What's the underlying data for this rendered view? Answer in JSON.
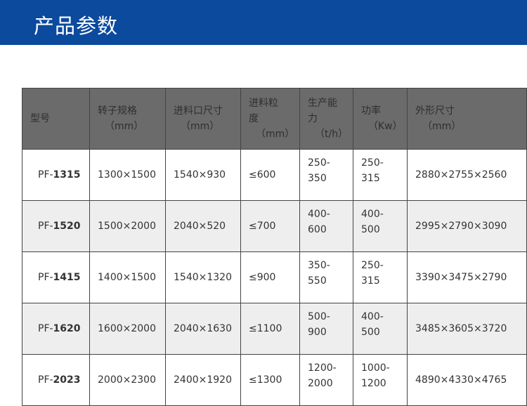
{
  "banner": {
    "title": "产品参数",
    "color": "#0b4a9d"
  },
  "table": {
    "headers": [
      {
        "line1": "型号",
        "line2": ""
      },
      {
        "line1": "转子规格",
        "line2": "（mm）"
      },
      {
        "line1": "进料口尺寸",
        "line2": "（mm）"
      },
      {
        "line1": "进料粒度",
        "line2": "（mm）"
      },
      {
        "line1": "生产能力",
        "line2": "（t/h）"
      },
      {
        "line1": "功率",
        "line2": "（Kw）"
      },
      {
        "line1": "外形尺寸",
        "line2": "（mm）"
      }
    ],
    "rows": [
      {
        "prefix": "PF-",
        "num": "1315",
        "rotor": "1300×1500",
        "inlet": "1540×930",
        "feed": "≤600",
        "cap1": "250-",
        "cap2": "350",
        "pow1": "250-",
        "pow2": "315",
        "dims": "2880×2755×2560"
      },
      {
        "prefix": "PF-",
        "num": "1520",
        "rotor": "1500×2000",
        "inlet": "2040×520",
        "feed": "≤700",
        "cap1": "400-",
        "cap2": "600",
        "pow1": "400-",
        "pow2": "500",
        "dims": "2995×2790×3090"
      },
      {
        "prefix": "PF-",
        "num": "1415",
        "rotor": "1400×1500",
        "inlet": "1540×1320",
        "feed": "≤900",
        "cap1": "350-",
        "cap2": "550",
        "pow1": "250-",
        "pow2": "315",
        "dims": "3390×3475×2790"
      },
      {
        "prefix": "PF-",
        "num": "1620",
        "rotor": "1600×2000",
        "inlet": "2040×1630",
        "feed": "≤1100",
        "cap1": "500-",
        "cap2": "900",
        "pow1": "400-",
        "pow2": "500",
        "dims": "3485×3605×3720"
      },
      {
        "prefix": "PF-",
        "num": "2023",
        "rotor": "2000×2300",
        "inlet": "2400×1920",
        "feed": "≤1300",
        "cap1": "1200-",
        "cap2": "2000",
        "pow1": "1000-",
        "pow2": "1200",
        "dims": "4890×4330×4765"
      }
    ]
  }
}
